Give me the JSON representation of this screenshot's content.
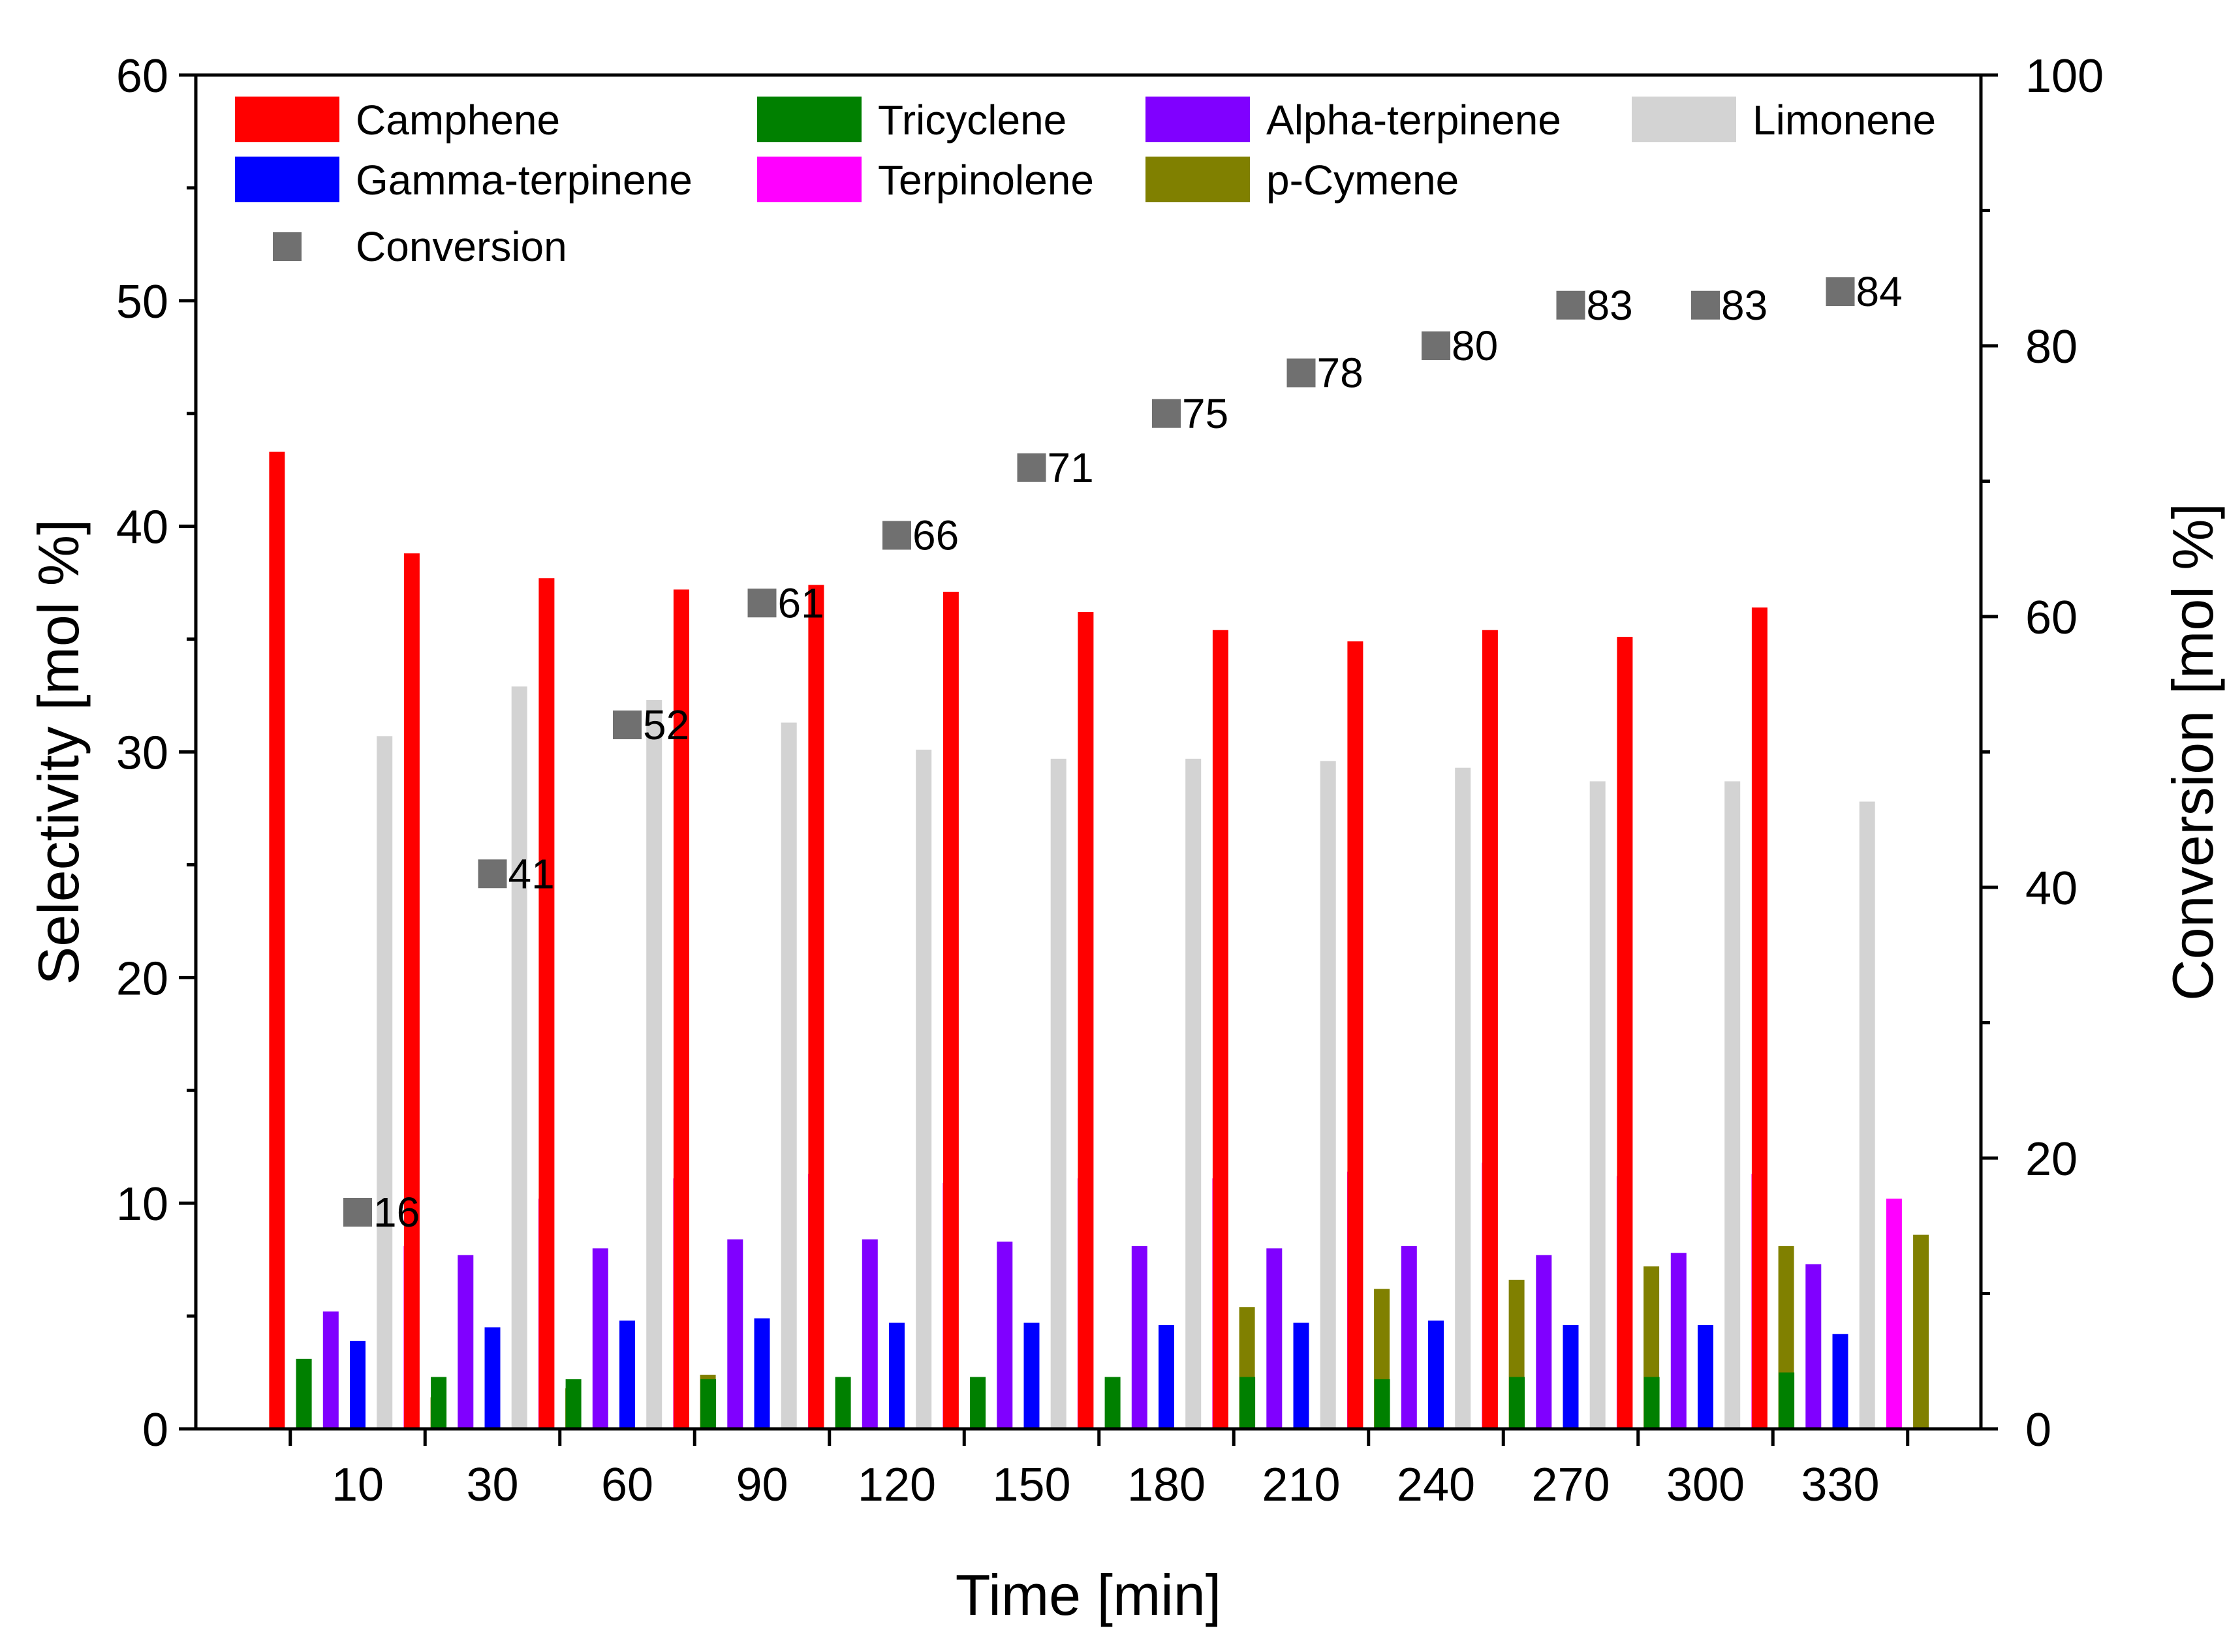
{
  "chart_data": {
    "type": "bar",
    "xlabel": "Time [min]",
    "ylabel": "Selectivity [mol %]",
    "y2label": "Conversion [mol %]",
    "categories": [
      "10",
      "30",
      "60",
      "90",
      "120",
      "150",
      "180",
      "210",
      "240",
      "270",
      "300",
      "330"
    ],
    "ylim": [
      0,
      60
    ],
    "yticks": [
      0,
      10,
      20,
      30,
      40,
      50,
      60
    ],
    "y2lim": [
      0,
      100
    ],
    "y2ticks": [
      0,
      20,
      40,
      60,
      80,
      100
    ],
    "series": [
      {
        "name": "Camphene",
        "color": "#ff0000",
        "values": [
          43.3,
          38.8,
          37.7,
          37.2,
          37.4,
          37.1,
          36.2,
          35.4,
          34.9,
          35.4,
          35.1,
          36.4
        ]
      },
      {
        "name": "Tricyclene",
        "color": "#008000",
        "values": [
          3.1,
          2.3,
          2.2,
          2.2,
          2.3,
          2.3,
          2.3,
          2.3,
          2.2,
          2.3,
          2.3,
          2.5
        ]
      },
      {
        "name": "Alpha-terpinene",
        "color": "#8000ff",
        "values": [
          5.2,
          7.7,
          8.0,
          8.4,
          8.4,
          8.3,
          8.1,
          8.0,
          8.1,
          7.7,
          7.8,
          7.3
        ]
      },
      {
        "name": "Gamma-terpinene",
        "color": "#0000ff",
        "values": [
          3.9,
          4.5,
          4.8,
          4.9,
          4.7,
          4.7,
          4.6,
          4.7,
          4.8,
          4.6,
          4.6,
          4.2
        ]
      },
      {
        "name": "Limonene",
        "color": "#d3d3d3",
        "values": [
          30.7,
          32.9,
          32.3,
          31.3,
          30.1,
          29.7,
          29.7,
          29.6,
          29.3,
          28.7,
          28.7,
          27.8
        ]
      },
      {
        "name": "Terpinolene",
        "color": "#ff00ff",
        "values": [
          8.1,
          10.2,
          11.1,
          11.3,
          10.9,
          11.1,
          11.1,
          11.4,
          11.8,
          11.2,
          11.3,
          10.2
        ]
      },
      {
        "name": "p-Cymene",
        "color": "#808000",
        "values": [
          1.4,
          1.8,
          2.4,
          0,
          0,
          0,
          5.4,
          6.2,
          6.6,
          7.2,
          8.1,
          8.6
        ]
      }
    ],
    "conversion": {
      "name": "Conversion",
      "color": "#707070",
      "axis": "right",
      "values": [
        16,
        41,
        52,
        61,
        66,
        71,
        75,
        78,
        80,
        83,
        83,
        84
      ],
      "labels": [
        "16",
        "41",
        "52",
        "61",
        "66",
        "71",
        "75",
        "78",
        "80",
        "83",
        "83",
        "84"
      ]
    },
    "legend": {
      "position": "top-left",
      "rows": [
        [
          "Camphene",
          "Tricyclene",
          "Alpha-terpinene",
          "Limonene"
        ],
        [
          "Gamma-terpinene",
          "Terpinolene",
          "p-Cymene"
        ],
        [
          "Conversion"
        ]
      ]
    }
  }
}
